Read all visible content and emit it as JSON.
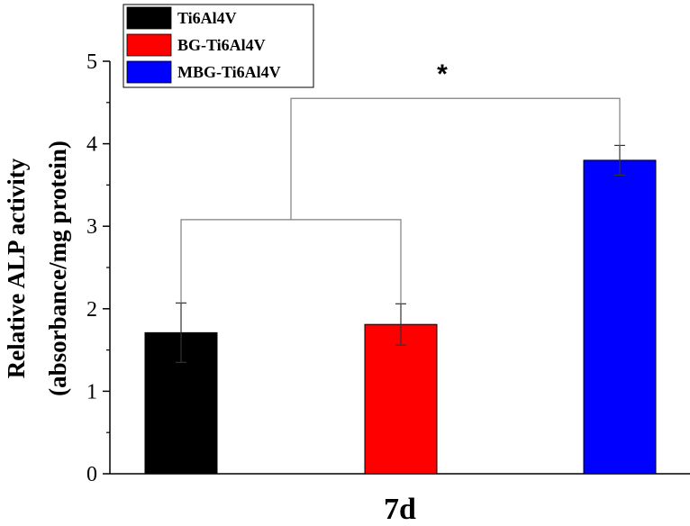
{
  "chart_data": {
    "type": "bar",
    "categories": [
      "Ti6Al4V",
      "BG-Ti6Al4V",
      "MBG-Ti6Al4V"
    ],
    "values": [
      1.71,
      1.81,
      3.8
    ],
    "errors": [
      0.36,
      0.25,
      0.18
    ],
    "colors": [
      "#000000",
      "#ff0000",
      "#0000ff"
    ],
    "xlabel": "7d",
    "ylabel_line1": "Relative ALP activity",
    "ylabel_line2": "(absorbance/mg protein)",
    "ylim": [
      0,
      5
    ],
    "yticks": [
      "0",
      "1",
      "2",
      "3",
      "4",
      "5"
    ],
    "legend": {
      "placement": "top-left",
      "entries": [
        "Ti6Al4V",
        "BG-Ti6Al4V",
        "MBG-Ti6Al4V"
      ]
    },
    "annotation": {
      "text": "*",
      "compares": [
        [
          "Ti6Al4V",
          "BG-Ti6Al4V"
        ],
        [
          "MBG-Ti6Al4V"
        ]
      ],
      "lower_bracket_y": 3.08,
      "upper_bracket_y": 4.55
    },
    "grid": false
  }
}
